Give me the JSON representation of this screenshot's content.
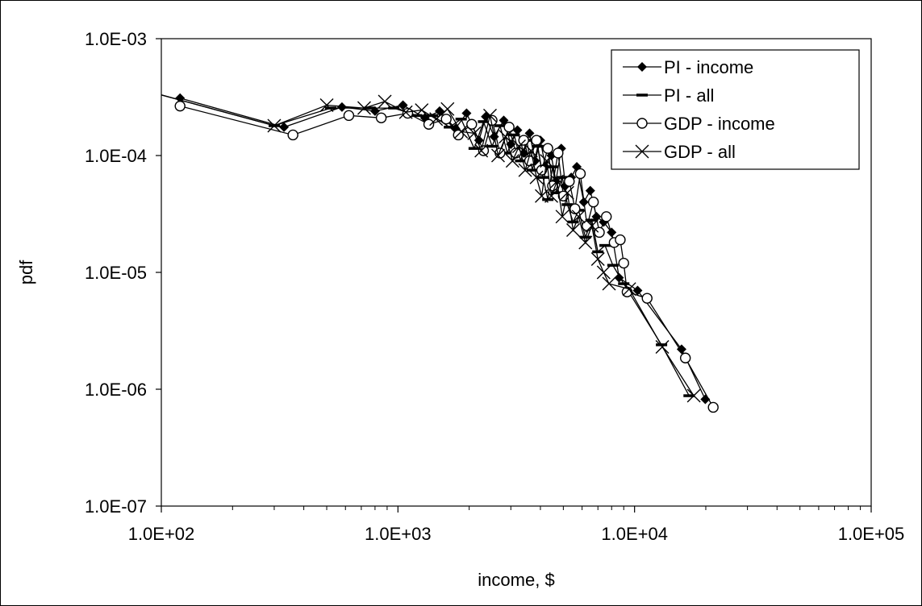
{
  "chart_data": {
    "type": "line",
    "title": "",
    "xlabel": "income, $",
    "ylabel": "pdf",
    "x_scale": "log",
    "y_scale": "log",
    "xlim": [
      100,
      100000
    ],
    "ylim": [
      1e-07,
      0.001
    ],
    "x_ticks": [
      "1.0E+02",
      "1.0E+03",
      "1.0E+04",
      "1.0E+05"
    ],
    "y_ticks": [
      "1.0E-03",
      "1.0E-04",
      "1.0E-05",
      "1.0E-06",
      "1.0E-07"
    ],
    "grid": false,
    "legend_position": "top-right",
    "series": [
      {
        "name": "PI - income",
        "marker": "diamond",
        "points": [
          [
            120,
            0.00031
          ],
          [
            330,
            0.000175
          ],
          [
            580,
            0.00026
          ],
          [
            800,
            0.00024
          ],
          [
            1050,
            0.00027
          ],
          [
            1300,
            0.00021
          ],
          [
            1500,
            0.00024
          ],
          [
            1750,
            0.00017
          ],
          [
            1950,
            0.00023
          ],
          [
            2200,
            0.000135
          ],
          [
            2350,
            0.000215
          ],
          [
            2550,
            0.000145
          ],
          [
            2800,
            0.0002
          ],
          [
            3000,
            0.000125
          ],
          [
            3200,
            0.000165
          ],
          [
            3400,
            0.000105
          ],
          [
            3600,
            0.000155
          ],
          [
            3800,
            9e-05
          ],
          [
            4000,
            0.000135
          ],
          [
            4200,
            8e-05
          ],
          [
            4450,
            0.0001
          ],
          [
            4650,
            6e-05
          ],
          [
            4900,
            0.000115
          ],
          [
            5100,
            5.5e-05
          ],
          [
            5400,
            6.5e-05
          ],
          [
            5700,
            8e-05
          ],
          [
            6100,
            4e-05
          ],
          [
            6500,
            5e-05
          ],
          [
            6900,
            3e-05
          ],
          [
            7400,
            2.7e-05
          ],
          [
            8000,
            2.2e-05
          ],
          [
            8600,
            9e-06
          ],
          [
            10300,
            7e-06
          ],
          [
            15800,
            2.2e-06
          ],
          [
            19900,
            8.2e-07
          ]
        ]
      },
      {
        "name": "PI - all",
        "marker": "dash",
        "points": [
          [
            100,
            0.00033
          ],
          [
            300,
            0.00018
          ],
          [
            520,
            0.000255
          ],
          [
            760,
            0.000255
          ],
          [
            960,
            0.000255
          ],
          [
            1200,
            0.00022
          ],
          [
            1400,
            0.00022
          ],
          [
            1650,
            0.000175
          ],
          [
            1850,
            0.000205
          ],
          [
            2100,
            0.000115
          ],
          [
            2300,
            0.000195
          ],
          [
            2500,
            0.00012
          ],
          [
            2700,
            0.00018
          ],
          [
            2900,
            0.000105
          ],
          [
            3100,
            0.00015
          ],
          [
            3300,
            9e-05
          ],
          [
            3500,
            0.000135
          ],
          [
            3700,
            7.5e-05
          ],
          [
            3900,
            0.00012
          ],
          [
            4100,
            6.5e-05
          ],
          [
            4300,
            4.2e-05
          ],
          [
            4500,
            8e-05
          ],
          [
            4700,
            4.8e-05
          ],
          [
            4950,
            6.5e-05
          ],
          [
            5200,
            3.8e-05
          ],
          [
            5500,
            2.7e-05
          ],
          [
            5800,
            3.4e-05
          ],
          [
            6200,
            2e-05
          ],
          [
            6600,
            2.8e-05
          ],
          [
            7000,
            1.5e-05
          ],
          [
            7500,
            1.7e-05
          ],
          [
            8100,
            1.15e-05
          ],
          [
            9000,
            8e-06
          ],
          [
            13000,
            2.4e-06
          ],
          [
            17000,
            8.8e-07
          ]
        ]
      },
      {
        "name": "GDP - income",
        "marker": "circle",
        "points": [
          [
            120,
            0.000265
          ],
          [
            360,
            0.00015
          ],
          [
            620,
            0.00022
          ],
          [
            850,
            0.00021
          ],
          [
            1100,
            0.00023
          ],
          [
            1350,
            0.000185
          ],
          [
            1600,
            0.000205
          ],
          [
            1800,
            0.00015
          ],
          [
            2050,
            0.000185
          ],
          [
            2300,
            0.00011
          ],
          [
            2500,
            0.0002
          ],
          [
            2700,
            0.000105
          ],
          [
            2950,
            0.000175
          ],
          [
            3150,
            0.000105
          ],
          [
            3400,
            0.000135
          ],
          [
            3600,
            9e-05
          ],
          [
            3850,
            0.000135
          ],
          [
            4050,
            7.5e-05
          ],
          [
            4300,
            0.000115
          ],
          [
            4500,
            5.5e-05
          ],
          [
            4750,
            0.000105
          ],
          [
            5000,
            4.5e-05
          ],
          [
            5300,
            6e-05
          ],
          [
            5600,
            3.5e-05
          ],
          [
            5900,
            7e-05
          ],
          [
            6300,
            2.5e-05
          ],
          [
            6700,
            4e-05
          ],
          [
            7100,
            2.2e-05
          ],
          [
            7600,
            3e-05
          ],
          [
            8200,
            1.8e-05
          ],
          [
            8700,
            1.9e-05
          ],
          [
            9000,
            1.2e-05
          ],
          [
            9300,
            6.8e-06
          ],
          [
            11300,
            6e-06
          ],
          [
            16400,
            1.85e-06
          ],
          [
            21500,
            7e-07
          ]
        ]
      },
      {
        "name": "GDP - all",
        "marker": "x",
        "points": [
          [
            100,
            0.00033
          ],
          [
            300,
            0.00018
          ],
          [
            500,
            0.00027
          ],
          [
            720,
            0.000255
          ],
          [
            880,
            0.00029
          ],
          [
            1080,
            0.000235
          ],
          [
            1260,
            0.000245
          ],
          [
            1450,
            0.000205
          ],
          [
            1620,
            0.00025
          ],
          [
            1850,
            0.00016
          ],
          [
            2100,
            0.000155
          ],
          [
            2250,
            0.00011
          ],
          [
            2450,
            0.00022
          ],
          [
            2650,
            0.0001
          ],
          [
            2850,
            0.000145
          ],
          [
            3050,
            9e-05
          ],
          [
            3250,
            0.00012
          ],
          [
            3450,
            7.5e-05
          ],
          [
            3650,
            0.00011
          ],
          [
            3850,
            6.5e-05
          ],
          [
            4050,
            4.5e-05
          ],
          [
            4250,
            9e-05
          ],
          [
            4450,
            4.5e-05
          ],
          [
            4700,
            6e-05
          ],
          [
            4950,
            3e-05
          ],
          [
            5200,
            4.8e-05
          ],
          [
            5500,
            2.3e-05
          ],
          [
            5800,
            3e-05
          ],
          [
            6200,
            1.8e-05
          ],
          [
            6600,
            2.5e-05
          ],
          [
            7000,
            1.3e-05
          ],
          [
            7400,
            1e-05
          ],
          [
            7800,
            8e-06
          ],
          [
            9500,
            7.2e-06
          ],
          [
            13100,
            2.3e-06
          ],
          [
            17800,
            8.8e-07
          ]
        ]
      }
    ]
  }
}
